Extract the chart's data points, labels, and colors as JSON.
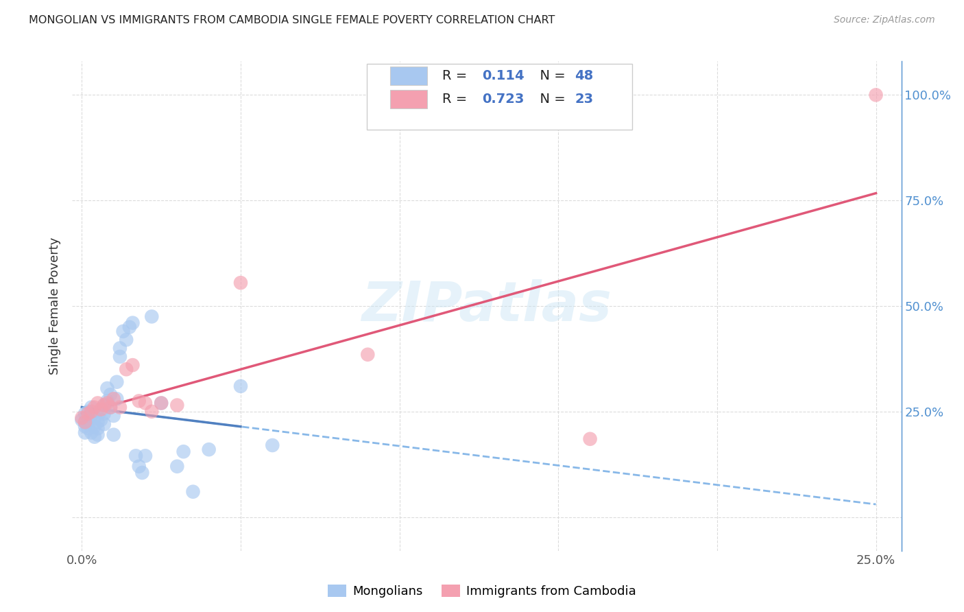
{
  "title": "MONGOLIAN VS IMMIGRANTS FROM CAMBODIA SINGLE FEMALE POVERTY CORRELATION CHART",
  "source": "Source: ZipAtlas.com",
  "ylabel": "Single Female Poverty",
  "watermark": "ZIPatlas",
  "r_mongolian": 0.114,
  "n_mongolian": 48,
  "r_cambodia": 0.723,
  "n_cambodia": 23,
  "xlim": [
    -0.003,
    0.258
  ],
  "ylim": [
    -0.08,
    1.08
  ],
  "xticks": [
    0.0,
    0.05,
    0.1,
    0.15,
    0.2,
    0.25
  ],
  "xtick_labels": [
    "0.0%",
    "",
    "",
    "",
    "",
    "25.0%"
  ],
  "yticks_right": [
    0.0,
    0.25,
    0.5,
    0.75,
    1.0
  ],
  "ytick_labels_right": [
    "",
    "25.0%",
    "50.0%",
    "75.0%",
    "100.0%"
  ],
  "color_mongolian": "#a8c8f0",
  "color_cambodia": "#f4a0b0",
  "color_mongolian_line_solid": "#5080c0",
  "color_cambodia_line": "#e05878",
  "color_mongolian_line_dash": "#88b8e8",
  "background_color": "#ffffff",
  "grid_color": "#d8d8d8",
  "mongol_x": [
    0.0,
    0.001,
    0.001,
    0.001,
    0.001,
    0.002,
    0.002,
    0.002,
    0.003,
    0.003,
    0.003,
    0.004,
    0.004,
    0.004,
    0.005,
    0.005,
    0.005,
    0.006,
    0.006,
    0.007,
    0.007,
    0.007,
    0.008,
    0.008,
    0.009,
    0.009,
    0.01,
    0.01,
    0.011,
    0.011,
    0.012,
    0.012,
    0.013,
    0.014,
    0.015,
    0.016,
    0.017,
    0.018,
    0.019,
    0.02,
    0.022,
    0.025,
    0.03,
    0.032,
    0.035,
    0.04,
    0.05,
    0.06
  ],
  "mongol_y": [
    0.23,
    0.245,
    0.225,
    0.215,
    0.2,
    0.25,
    0.235,
    0.21,
    0.26,
    0.24,
    0.2,
    0.235,
    0.215,
    0.19,
    0.225,
    0.21,
    0.195,
    0.25,
    0.23,
    0.265,
    0.245,
    0.22,
    0.305,
    0.275,
    0.29,
    0.26,
    0.24,
    0.195,
    0.32,
    0.28,
    0.38,
    0.4,
    0.44,
    0.42,
    0.45,
    0.46,
    0.145,
    0.12,
    0.105,
    0.145,
    0.475,
    0.27,
    0.12,
    0.155,
    0.06,
    0.16,
    0.31,
    0.17
  ],
  "camb_x": [
    0.0,
    0.001,
    0.002,
    0.003,
    0.004,
    0.005,
    0.006,
    0.007,
    0.008,
    0.009,
    0.01,
    0.012,
    0.014,
    0.016,
    0.018,
    0.02,
    0.022,
    0.025,
    0.03,
    0.05,
    0.09,
    0.16,
    0.25
  ],
  "camb_y": [
    0.235,
    0.225,
    0.245,
    0.25,
    0.26,
    0.27,
    0.255,
    0.265,
    0.27,
    0.26,
    0.28,
    0.26,
    0.35,
    0.36,
    0.275,
    0.27,
    0.25,
    0.27,
    0.265,
    0.555,
    0.385,
    0.185,
    1.0
  ],
  "legend_blue_color": "#4472c4",
  "legend_text_color": "#222222",
  "right_axis_color": "#5090d0"
}
